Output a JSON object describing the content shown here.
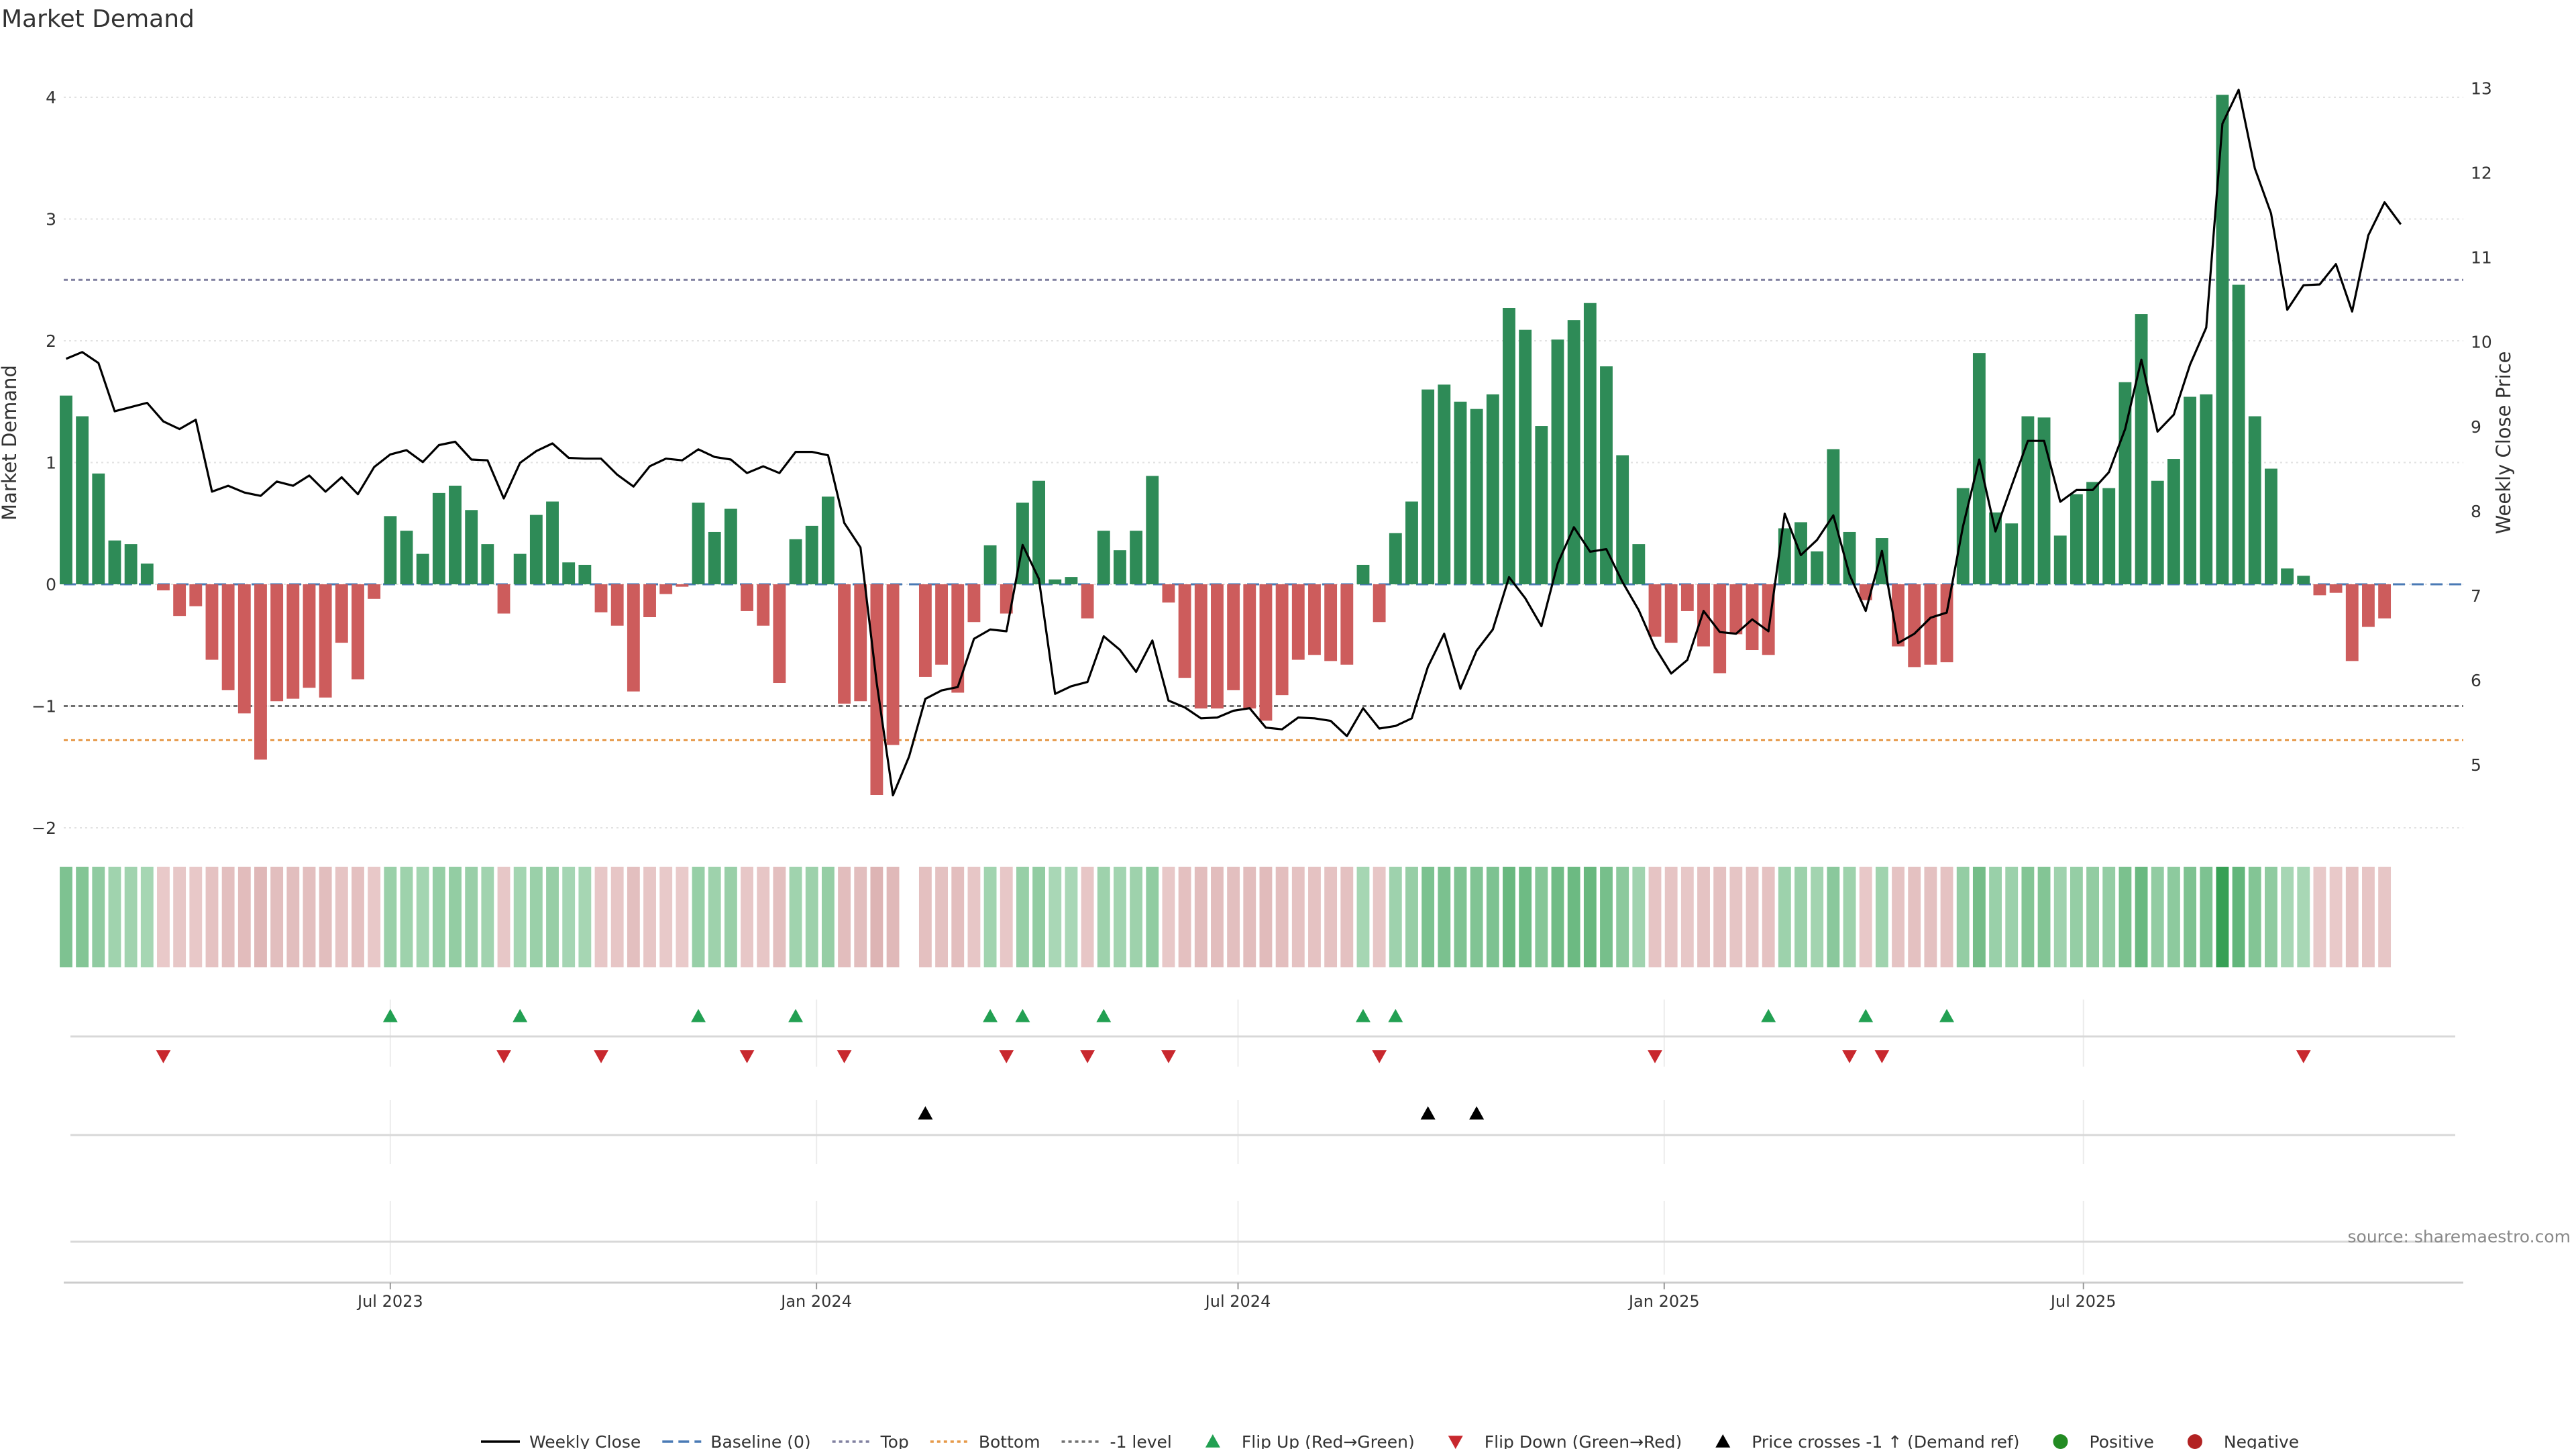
{
  "chart_data": {
    "type": "bar",
    "title": "Market Demand",
    "ylabel": "Market Demand",
    "y2label": "Weekly Close Price",
    "ylim": [
      -2.2,
      4.3
    ],
    "y2lim": [
      4.1,
      13.2
    ],
    "yticks": [
      4,
      3,
      2,
      1,
      0,
      -1,
      -2
    ],
    "y2ticks": [
      13,
      12,
      11,
      10,
      9,
      8,
      7,
      6,
      5
    ],
    "x_start": "2023-02-10",
    "x_end": "2025-12-12",
    "xticks": [
      {
        "date": "2023-07-01",
        "label": "Jul 2023"
      },
      {
        "date": "2024-01-01",
        "label": "Jan 2024"
      },
      {
        "date": "2024-07-01",
        "label": "Jul 2024"
      },
      {
        "date": "2025-01-01",
        "label": "Jan 2025"
      },
      {
        "date": "2025-07-01",
        "label": "Jul 2025"
      }
    ],
    "reference_lines": {
      "top": 2.5,
      "bottom": -1.28,
      "minus_one": -1,
      "baseline": 0
    },
    "first_week": "2023-02-11",
    "demand": [
      1.55,
      1.38,
      0.91,
      0.36,
      0.33,
      0.17,
      -0.05,
      -0.26,
      -0.18,
      -0.62,
      -0.87,
      -1.06,
      -1.44,
      -0.96,
      -0.94,
      -0.85,
      -0.93,
      -0.48,
      -0.78,
      -0.12,
      0.56,
      0.44,
      0.25,
      0.75,
      0.81,
      0.61,
      0.33,
      -0.24,
      0.25,
      0.57,
      0.68,
      0.18,
      0.16,
      -0.23,
      -0.34,
      -0.88,
      -0.27,
      -0.08,
      -0.02,
      0.67,
      0.43,
      0.62,
      -0.22,
      -0.34,
      -0.81,
      0.37,
      0.48,
      0.72,
      -0.98,
      -0.96,
      -1.73,
      -1.32,
      null,
      -0.76,
      -0.66,
      -0.89,
      -0.31,
      0.32,
      -0.24,
      0.67,
      0.85,
      0.04,
      0.06,
      -0.28,
      0.44,
      0.28,
      0.44,
      0.89,
      -0.15,
      -0.77,
      -1.02,
      -1.02,
      -0.87,
      -1.02,
      -1.12,
      -0.91,
      -0.62,
      -0.58,
      -0.63,
      -0.66,
      0.16,
      -0.31,
      0.42,
      0.68,
      1.6,
      1.64,
      1.5,
      1.44,
      1.56,
      2.27,
      2.09,
      1.3,
      2.01,
      2.17,
      2.31,
      1.79,
      1.06,
      0.33,
      -0.43,
      -0.48,
      -0.22,
      -0.51,
      -0.73,
      -0.41,
      -0.54,
      -0.58,
      0.46,
      0.51,
      0.27,
      1.11,
      0.43,
      -0.13,
      0.38,
      -0.51,
      -0.68,
      -0.66,
      -0.64,
      0.79,
      1.9,
      0.59,
      0.5,
      1.38,
      1.37,
      0.4,
      0.74,
      0.84,
      0.79,
      1.66,
      2.22,
      0.85,
      1.03,
      1.54,
      1.56,
      4.02,
      2.46,
      1.38,
      0.95,
      0.13,
      0.07,
      -0.09,
      -0.07,
      -0.63,
      -0.35,
      -0.28
    ],
    "weekly_close": [
      9.8,
      9.88,
      9.75,
      9.18,
      9.23,
      9.28,
      9.06,
      8.97,
      9.08,
      8.23,
      8.3,
      8.22,
      8.18,
      8.35,
      8.3,
      8.42,
      8.23,
      8.4,
      8.2,
      8.52,
      8.67,
      8.72,
      8.58,
      8.78,
      8.82,
      8.61,
      8.6,
      8.15,
      8.57,
      8.71,
      8.8,
      8.63,
      8.62,
      8.62,
      8.43,
      8.29,
      8.53,
      8.62,
      8.6,
      8.73,
      8.64,
      8.61,
      8.45,
      8.53,
      8.45,
      8.7,
      8.7,
      8.66,
      7.86,
      7.57,
      5.97,
      4.64,
      5.1,
      5.78,
      5.88,
      5.92,
      6.49,
      6.6,
      6.58,
      7.6,
      7.2,
      5.84,
      5.93,
      5.98,
      6.52,
      6.36,
      6.1,
      6.47,
      5.76,
      5.68,
      5.55,
      5.56,
      5.64,
      5.67,
      5.44,
      5.42,
      5.56,
      5.55,
      5.52,
      5.34,
      5.67,
      5.43,
      5.46,
      5.55,
      6.16,
      6.55,
      5.9,
      6.35,
      6.6,
      7.22,
      6.97,
      6.64,
      7.38,
      7.81,
      7.52,
      7.55,
      7.16,
      6.83,
      6.39,
      6.08,
      6.24,
      6.82,
      6.57,
      6.55,
      6.72,
      6.58,
      7.97,
      7.48,
      7.66,
      7.95,
      7.25,
      6.82,
      7.53,
      6.44,
      6.55,
      6.74,
      6.8,
      7.82,
      8.61,
      7.76,
      8.3,
      8.83,
      8.83,
      8.11,
      8.25,
      8.25,
      8.46,
      8.97,
      9.79,
      8.94,
      9.14,
      9.73,
      10.17,
      12.58,
      12.98,
      12.05,
      11.52,
      10.38,
      10.67,
      10.68,
      10.92,
      10.36,
      11.26,
      11.65,
      11.39
    ],
    "flip_up_weeks": [
      20,
      28,
      39,
      45,
      57,
      59,
      64,
      80,
      82,
      105,
      111,
      116
    ],
    "flip_down_weeks": [
      6,
      27,
      33,
      42,
      48,
      58,
      63,
      68,
      81,
      98,
      110,
      112,
      138
    ],
    "price_cross_weeks": [
      53,
      84,
      87
    ],
    "legend": [
      {
        "key": "weekly",
        "label": "Weekly Close"
      },
      {
        "key": "baseline",
        "label": "Baseline (0)"
      },
      {
        "key": "top",
        "label": "Top"
      },
      {
        "key": "bottom",
        "label": "Bottom"
      },
      {
        "key": "minus1",
        "label": "-1 level"
      },
      {
        "key": "flipup",
        "label": "Flip Up (Red→Green)"
      },
      {
        "key": "flipdown",
        "label": "Flip Down (Green→Red)"
      },
      {
        "key": "pricecross",
        "label": "Price crosses -1 ↑ (Demand ref)"
      },
      {
        "key": "positive",
        "label": "Positive"
      },
      {
        "key": "negative",
        "label": "Negative"
      }
    ],
    "source": "source: sharemaestro.com"
  },
  "colors": {
    "positive": "#2e8b57",
    "negative": "#cd5c5c",
    "line": "#000000",
    "baseline": "#4a7ab5",
    "top": "#8080a0",
    "bottom": "#e69a4a",
    "minus1": "#707070",
    "flip_up": "#22a052",
    "flip_down": "#c8282e",
    "legend_positive": "#228b22",
    "legend_negative": "#b22222",
    "grid": "#e2e2e2",
    "axis_text": "#333333"
  }
}
